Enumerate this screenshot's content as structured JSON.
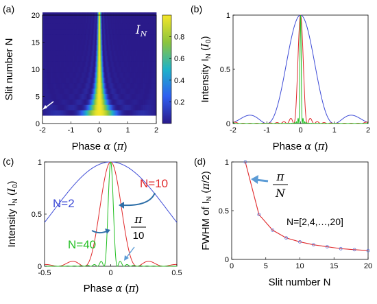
{
  "chart_data": [
    {
      "panel": "(a)",
      "type": "heatmap",
      "xlabel": "Phase α (π)",
      "ylabel": "Slit number N",
      "xlim": [
        -2,
        2
      ],
      "ylim": [
        0,
        20
      ],
      "xticks": [
        "-2",
        "-1",
        "0",
        "1",
        "2"
      ],
      "yticks": [
        "0",
        "5",
        "10",
        "15",
        "20"
      ],
      "colorbar_label": "I_N",
      "colorbar_ticks": [
        "0.2",
        "0.4",
        "0.6",
        "0.8"
      ],
      "colors": {
        "low": "#2a1a8a",
        "high": "#f5e62a"
      },
      "N_range": [
        2,
        20
      ],
      "grid": false
    },
    {
      "panel": "(b)",
      "type": "line",
      "xlabel": "Phase α (π)",
      "ylabel": "Intensity I_N (I_0)",
      "xlim": [
        -2,
        2
      ],
      "ylim": [
        0,
        1
      ],
      "xticks": [
        "-2",
        "-1",
        "0",
        "1",
        "2"
      ],
      "yticks": [
        "0",
        "0.5",
        "1"
      ],
      "series_params": [
        {
          "N": 2,
          "color": "#3c4ad6"
        },
        {
          "N": 10,
          "color": "#e0282a"
        },
        {
          "N": 40,
          "color": "#22bf22"
        }
      ],
      "envelope": "sinc^2 with zero at α = ±2.2π"
    },
    {
      "panel": "(c)",
      "type": "line",
      "xlabel": "Phase α (π)",
      "ylabel": "Intensity I_N (I_0)",
      "xlim": [
        -0.5,
        0.5
      ],
      "ylim": [
        0,
        1
      ],
      "xticks": [
        "-0.5",
        "0",
        "0.5"
      ],
      "yticks": [
        "0",
        "0.5",
        "1"
      ],
      "series_params": [
        {
          "N": 2,
          "color": "#3c4ad6"
        },
        {
          "N": 10,
          "color": "#e0282a"
        },
        {
          "N": 40,
          "color": "#22bf22"
        }
      ],
      "annotations": {
        "n2": "N=2",
        "n10": "N=10",
        "n40": "N=40",
        "pi_num": "π",
        "pi_den": "10"
      }
    },
    {
      "panel": "(d)",
      "type": "scatter",
      "xlabel": "Slit number N",
      "ylabel": "FWHM of I_N (π/2)",
      "xlim": [
        0,
        20
      ],
      "ylim": [
        0,
        1
      ],
      "xticks": [
        "0",
        "5",
        "10",
        "15",
        "20"
      ],
      "yticks": [
        "0",
        "0.5",
        "1"
      ],
      "points": {
        "x": [
          2,
          4,
          6,
          8,
          10,
          12,
          14,
          16,
          18,
          20
        ],
        "y": [
          1.0,
          0.46,
          0.3,
          0.22,
          0.18,
          0.15,
          0.13,
          0.11,
          0.1,
          0.09
        ],
        "color": "#6b7fd8"
      },
      "fit_curve": {
        "formula": "π/N",
        "color": "#e0282a"
      },
      "annotations": {
        "pi_num": "π",
        "pi_den": "N",
        "nset": "N=[2,4,…,20]"
      }
    }
  ],
  "labels": {
    "a": "(a)",
    "b": "(b)",
    "c": "(c)",
    "d": "(d)",
    "phase": "Phase α (π)",
    "slit_n": "Slit number N",
    "intensity": "Intensity I_N (I_0)",
    "fwhm": "FWHM of I_N (π/2)",
    "IN": "I_N"
  }
}
